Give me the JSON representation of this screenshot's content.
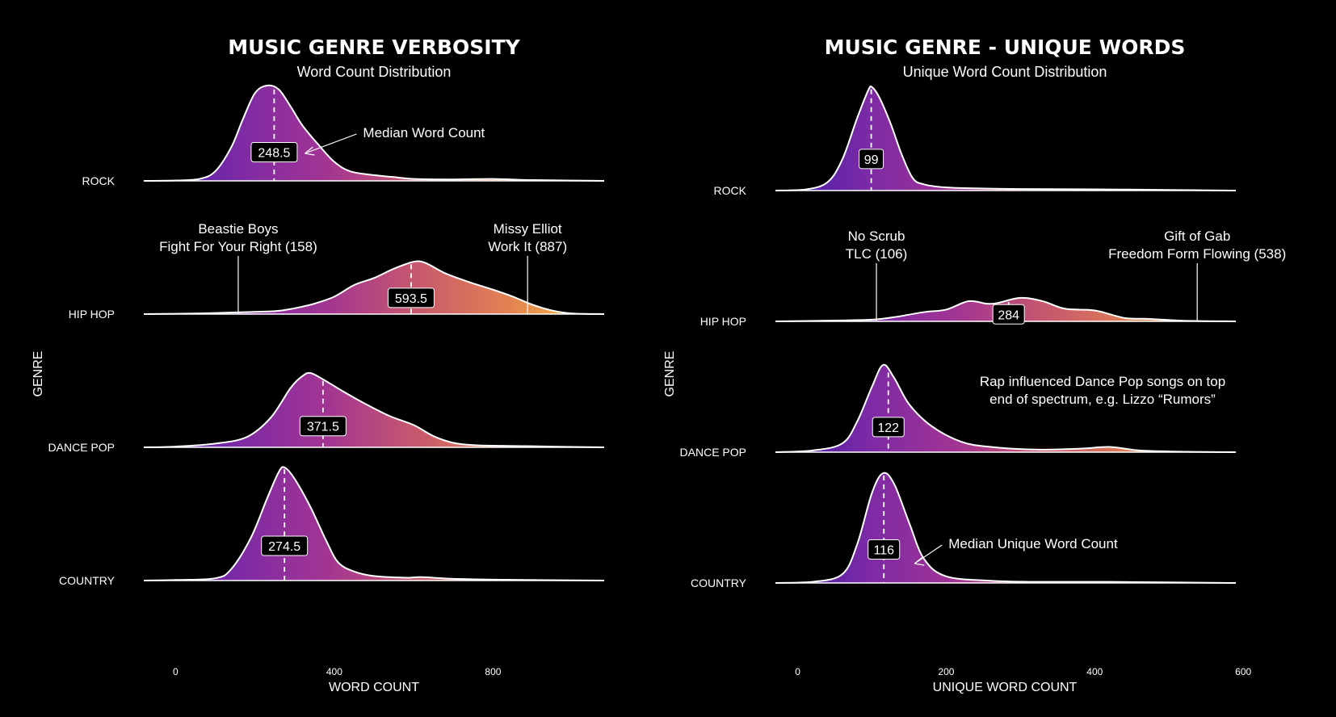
{
  "colors": {
    "background": "#000000",
    "text": "#ffffff",
    "gradient": [
      "#3b1ca8",
      "#7c2aa6",
      "#a33592",
      "#c85a6c",
      "#e38451",
      "#f6c33f"
    ]
  },
  "chart_data": [
    {
      "type": "area",
      "subtype": "ridgeline-density",
      "title": "MUSIC GENRE VERBOSITY",
      "subtitle": "Word Count Distribution",
      "xlabel": "WORD COUNT",
      "ylabel": "GENRE",
      "xticks": [
        0,
        400,
        800
      ],
      "xlim": [
        -80,
        1080
      ],
      "series": [
        {
          "name": "ROCK",
          "median": 248.5,
          "median_label": "248.5",
          "density": [
            [
              -80,
              0
            ],
            [
              0,
              0.004
            ],
            [
              60,
              0.02
            ],
            [
              100,
              0.1
            ],
            [
              140,
              0.35
            ],
            [
              170,
              0.65
            ],
            [
              200,
              0.92
            ],
            [
              230,
              1.0
            ],
            [
              260,
              0.96
            ],
            [
              290,
              0.78
            ],
            [
              320,
              0.58
            ],
            [
              360,
              0.38
            ],
            [
              400,
              0.2
            ],
            [
              440,
              0.1
            ],
            [
              500,
              0.06
            ],
            [
              550,
              0.04
            ],
            [
              600,
              0.02
            ],
            [
              700,
              0.015
            ],
            [
              800,
              0.02
            ],
            [
              900,
              0.008
            ],
            [
              1080,
              0
            ]
          ]
        },
        {
          "name": "HIP HOP",
          "median": 593.5,
          "median_label": "593.5",
          "density": [
            [
              -80,
              0
            ],
            [
              50,
              0.01
            ],
            [
              150,
              0.03
            ],
            [
              250,
              0.05
            ],
            [
              300,
              0.1
            ],
            [
              350,
              0.18
            ],
            [
              400,
              0.3
            ],
            [
              450,
              0.5
            ],
            [
              500,
              0.62
            ],
            [
              550,
              0.78
            ],
            [
              600,
              0.9
            ],
            [
              630,
              0.88
            ],
            [
              680,
              0.7
            ],
            [
              740,
              0.55
            ],
            [
              800,
              0.42
            ],
            [
              850,
              0.3
            ],
            [
              900,
              0.16
            ],
            [
              950,
              0.06
            ],
            [
              1000,
              0.01
            ],
            [
              1080,
              0
            ]
          ]
        },
        {
          "name": "DANCE POP",
          "median": 371.5,
          "median_label": "371.5",
          "density": [
            [
              -80,
              0
            ],
            [
              0,
              0.01
            ],
            [
              100,
              0.05
            ],
            [
              180,
              0.14
            ],
            [
              240,
              0.4
            ],
            [
              290,
              0.8
            ],
            [
              320,
              0.96
            ],
            [
              340,
              1.0
            ],
            [
              370,
              0.92
            ],
            [
              420,
              0.76
            ],
            [
              480,
              0.58
            ],
            [
              540,
              0.42
            ],
            [
              600,
              0.3
            ],
            [
              650,
              0.15
            ],
            [
              700,
              0.06
            ],
            [
              750,
              0.03
            ],
            [
              820,
              0.02
            ],
            [
              900,
              0.015
            ],
            [
              1000,
              0.005
            ],
            [
              1080,
              0
            ]
          ]
        },
        {
          "name": "COUNTRY",
          "median": 274.5,
          "median_label": "274.5",
          "density": [
            [
              -80,
              0
            ],
            [
              0,
              0.005
            ],
            [
              100,
              0.02
            ],
            [
              140,
              0.1
            ],
            [
              190,
              0.38
            ],
            [
              230,
              0.72
            ],
            [
              260,
              0.96
            ],
            [
              275,
              1.0
            ],
            [
              300,
              0.9
            ],
            [
              340,
              0.65
            ],
            [
              380,
              0.35
            ],
            [
              410,
              0.16
            ],
            [
              450,
              0.08
            ],
            [
              500,
              0.04
            ],
            [
              580,
              0.025
            ],
            [
              620,
              0.03
            ],
            [
              700,
              0.015
            ],
            [
              800,
              0.008
            ],
            [
              1080,
              0
            ]
          ]
        }
      ],
      "annotations": [
        {
          "text": "Median Word Count",
          "target": "ROCK"
        },
        {
          "lines": [
            "Beastie Boys",
            "Fight For Your Right (158)"
          ],
          "x": 158,
          "target": "HIP HOP"
        },
        {
          "lines": [
            "Missy Elliot",
            "Work It (887)"
          ],
          "x": 887,
          "target": "HIP HOP"
        }
      ]
    },
    {
      "type": "area",
      "subtype": "ridgeline-density",
      "title": "MUSIC GENRE - UNIQUE WORDS",
      "subtitle": "Unique Word Count Distribution",
      "xlabel": "UNIQUE WORD COUNT",
      "ylabel": "GENRE",
      "xticks": [
        0,
        200,
        400,
        600
      ],
      "xlim": [
        -30,
        590
      ],
      "series": [
        {
          "name": "ROCK",
          "median": 99,
          "median_label": "99",
          "density": [
            [
              -30,
              0
            ],
            [
              10,
              0.01
            ],
            [
              40,
              0.08
            ],
            [
              60,
              0.3
            ],
            [
              80,
              0.7
            ],
            [
              95,
              0.97
            ],
            [
              100,
              1.0
            ],
            [
              110,
              0.9
            ],
            [
              125,
              0.65
            ],
            [
              140,
              0.35
            ],
            [
              155,
              0.12
            ],
            [
              170,
              0.06
            ],
            [
              200,
              0.03
            ],
            [
              250,
              0.02
            ],
            [
              300,
              0.015
            ],
            [
              400,
              0.012
            ],
            [
              500,
              0.006
            ],
            [
              590,
              0
            ]
          ]
        },
        {
          "name": "HIP HOP",
          "median": 284,
          "median_label": "284",
          "density": [
            [
              -30,
              0
            ],
            [
              50,
              0.02
            ],
            [
              100,
              0.04
            ],
            [
              130,
              0.1
            ],
            [
              170,
              0.22
            ],
            [
              200,
              0.28
            ],
            [
              230,
              0.48
            ],
            [
              255,
              0.42
            ],
            [
              270,
              0.44
            ],
            [
              300,
              0.56
            ],
            [
              330,
              0.48
            ],
            [
              360,
              0.3
            ],
            [
              400,
              0.26
            ],
            [
              440,
              0.08
            ],
            [
              470,
              0.06
            ],
            [
              520,
              0.015
            ],
            [
              590,
              0
            ]
          ]
        },
        {
          "name": "DANCE POP",
          "median": 122,
          "median_label": "122",
          "density": [
            [
              -30,
              0
            ],
            [
              20,
              0.02
            ],
            [
              60,
              0.1
            ],
            [
              80,
              0.35
            ],
            [
              100,
              0.75
            ],
            [
              115,
              1.0
            ],
            [
              130,
              0.85
            ],
            [
              150,
              0.55
            ],
            [
              180,
              0.3
            ],
            [
              220,
              0.12
            ],
            [
              260,
              0.06
            ],
            [
              320,
              0.03
            ],
            [
              380,
              0.04
            ],
            [
              420,
              0.06
            ],
            [
              460,
              0.02
            ],
            [
              520,
              0.005
            ],
            [
              590,
              0
            ]
          ]
        },
        {
          "name": "COUNTRY",
          "median": 116,
          "median_label": "116",
          "density": [
            [
              -30,
              0
            ],
            [
              20,
              0.01
            ],
            [
              60,
              0.08
            ],
            [
              80,
              0.35
            ],
            [
              100,
              0.82
            ],
            [
              115,
              1.0
            ],
            [
              130,
              0.9
            ],
            [
              150,
              0.55
            ],
            [
              170,
              0.22
            ],
            [
              200,
              0.06
            ],
            [
              260,
              0.02
            ],
            [
              320,
              0.01
            ],
            [
              420,
              0.01
            ],
            [
              590,
              0
            ]
          ]
        }
      ],
      "annotations": [
        {
          "lines": [
            "No Scrub",
            "TLC (106)"
          ],
          "x": 106,
          "target": "HIP HOP"
        },
        {
          "lines": [
            "Gift of Gab",
            "Freedom Form Flowing (538)"
          ],
          "x": 538,
          "target": "HIP HOP"
        },
        {
          "lines": [
            "Rap influenced Dance Pop songs on top",
            "end of spectrum, e.g. Lizzo “Rumors”"
          ],
          "target": "DANCE POP"
        },
        {
          "text": "Median Unique Word Count",
          "target": "COUNTRY"
        }
      ]
    }
  ]
}
